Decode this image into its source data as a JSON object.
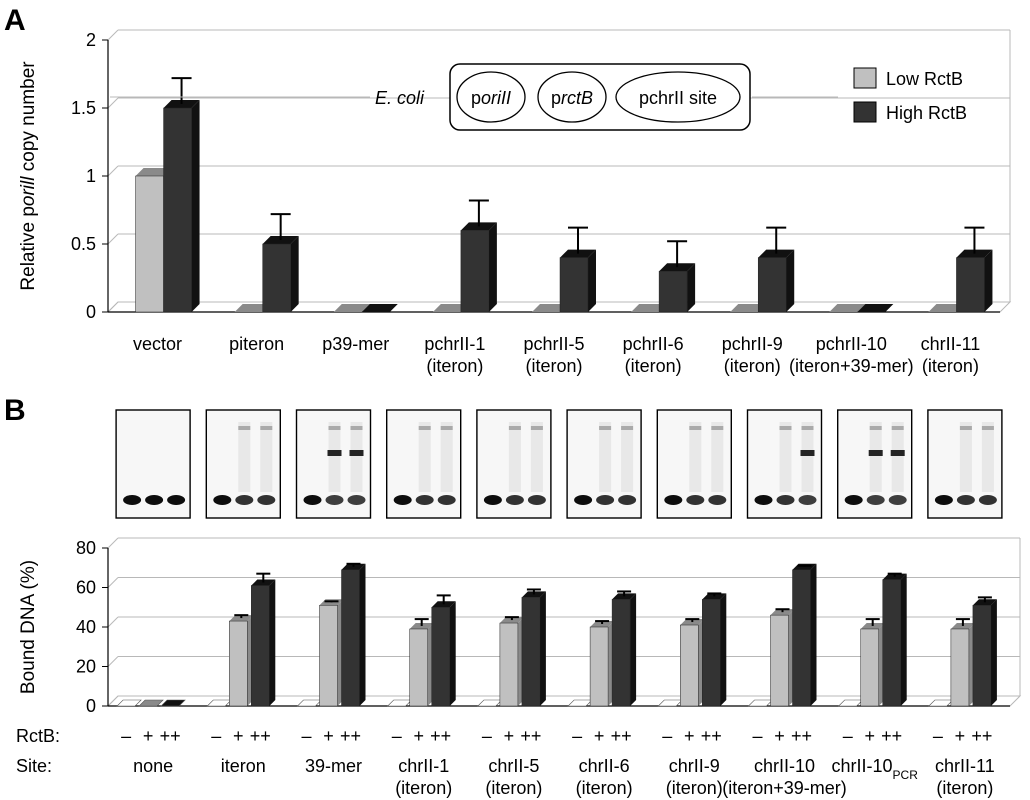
{
  "panel_labels": {
    "a": "A",
    "b": "B"
  },
  "colors": {
    "low": "#c0c0c0",
    "high": "#333333",
    "low_side": "#8a8a8a",
    "high_side": "#111111",
    "grid": "#b8b8b8"
  },
  "inset": {
    "organism": "E. coli",
    "plasmids": [
      {
        "prefix": "p",
        "italic": "oriII",
        "suffix": ""
      },
      {
        "prefix": "p",
        "italic": "rctB",
        "suffix": ""
      },
      {
        "prefix": "pchrII site",
        "italic": "",
        "suffix": ""
      }
    ]
  },
  "chart_data": [
    {
      "type": "bar",
      "panel": "A",
      "ylabel_parts": {
        "before": "Relative p",
        "italic": "orill",
        "after": " copy number"
      },
      "ylim": [
        0,
        2
      ],
      "yticks": [
        {
          "v": 0,
          "label": "0"
        },
        {
          "v": 0.5,
          "label": "0.5"
        },
        {
          "v": 1,
          "label": "1"
        },
        {
          "v": 1.5,
          "label": "1.5"
        },
        {
          "v": 2,
          "label": "2"
        }
      ],
      "grid": true,
      "legend_position": "top-right",
      "categories": [
        [
          "vector"
        ],
        [
          "piteron"
        ],
        [
          "p39-mer"
        ],
        [
          "pchrII-1",
          "(iteron)"
        ],
        [
          "pchrII-5",
          "(iteron)"
        ],
        [
          "pchrII-6",
          "(iteron)"
        ],
        [
          "pchrII-9",
          "(iteron)"
        ],
        [
          "pchrII-10",
          "(iteron+39-mer)"
        ],
        [
          "chrII-11",
          "(iteron)"
        ]
      ],
      "series": [
        {
          "name": "Low RctB",
          "values": [
            1.0,
            0,
            0,
            0,
            0,
            0,
            0,
            0,
            0
          ],
          "errors": [
            0,
            0,
            0,
            0,
            0,
            0,
            0,
            0,
            0
          ]
        },
        {
          "name": "High RctB",
          "values": [
            1.5,
            0.5,
            0,
            0.6,
            0.4,
            0.3,
            0.4,
            0,
            0.4
          ],
          "errors": [
            0.22,
            0.22,
            0,
            0.22,
            0.22,
            0.22,
            0.22,
            0,
            0.22
          ]
        }
      ]
    },
    {
      "type": "bar",
      "panel": "B",
      "ylabel": "Bound DNA (%)",
      "ylim": [
        0,
        80
      ],
      "yticks": [
        {
          "v": 0,
          "label": "0"
        },
        {
          "v": 20,
          "label": "20"
        },
        {
          "v": 40,
          "label": "40"
        },
        {
          "v": 60,
          "label": "60"
        },
        {
          "v": 80,
          "label": "80"
        }
      ],
      "grid": true,
      "row_labels": {
        "rctb": "RctB:",
        "site": "Site:"
      },
      "rctb_levels": [
        "–",
        "+",
        "++"
      ],
      "categories": [
        {
          "site": [
            "none"
          ]
        },
        {
          "site": [
            "iteron"
          ]
        },
        {
          "site": [
            "39-mer"
          ]
        },
        {
          "site": [
            "chrII-1",
            "(iteron)"
          ]
        },
        {
          "site": [
            "chrII-5",
            "(iteron)"
          ]
        },
        {
          "site": [
            "chrII-6",
            "(iteron)"
          ]
        },
        {
          "site": [
            "chrII-9",
            "(iteron)"
          ]
        },
        {
          "site": [
            "chrII-10",
            "(iteron+39-mer)"
          ]
        },
        {
          "site": [
            "chrII-10",
            "(iteron+39-mer)"
          ],
          "main": "chrII-10",
          "sub": "PCR"
        },
        {
          "site": [
            "chrII-11",
            "(iteron)"
          ]
        }
      ],
      "series": [
        {
          "name": "–",
          "values": [
            0,
            0,
            0,
            0,
            0,
            0,
            0,
            0,
            0,
            0
          ],
          "errors": [
            0,
            0,
            0,
            0,
            0,
            0,
            0,
            0,
            0,
            0
          ]
        },
        {
          "name": "+",
          "values": [
            0,
            43,
            51,
            39,
            42,
            40,
            41,
            46,
            39,
            39
          ],
          "errors": [
            0,
            3,
            2,
            5,
            3,
            3,
            3,
            3,
            5,
            5
          ]
        },
        {
          "name": "++",
          "values": [
            0,
            61,
            69,
            50,
            55,
            54,
            54,
            69,
            64,
            51
          ],
          "errors": [
            0,
            6,
            3,
            6,
            4,
            4,
            3,
            2,
            3,
            4
          ]
        }
      ]
    }
  ],
  "gels": [
    {
      "lanes": [
        0,
        0,
        0
      ]
    },
    {
      "lanes": [
        0,
        1,
        1
      ]
    },
    {
      "lanes": [
        0,
        2,
        2
      ]
    },
    {
      "lanes": [
        0,
        1,
        1
      ]
    },
    {
      "lanes": [
        0,
        1,
        1
      ]
    },
    {
      "lanes": [
        0,
        1,
        1
      ]
    },
    {
      "lanes": [
        0,
        1,
        1
      ]
    },
    {
      "lanes": [
        0,
        1,
        2
      ]
    },
    {
      "lanes": [
        0,
        2,
        2
      ]
    },
    {
      "lanes": [
        0,
        1,
        1
      ]
    }
  ]
}
